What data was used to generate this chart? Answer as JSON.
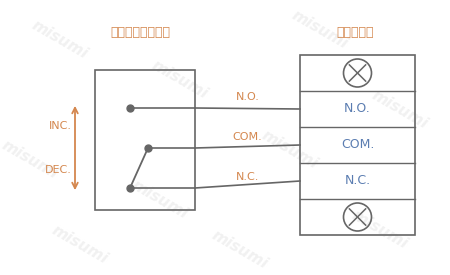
{
  "bg_color": "#ffffff",
  "text_color_orange": "#d4874e",
  "text_color_blue": "#5b7db1",
  "line_color": "#666666",
  "box_color": "#666666",
  "label_microswitch": "マイクロスイッチ",
  "label_terminal": "ターミナル",
  "label_NO": "N.O.",
  "label_COM": "COM.",
  "label_NC": "N.C.",
  "label_INC": "INC.",
  "label_DEC": "DEC.",
  "font_size_label": 8,
  "font_size_title": 9,
  "font_size_term": 9,
  "watermark_color": "#e8e8e8",
  "watermark_alpha": 0.9
}
